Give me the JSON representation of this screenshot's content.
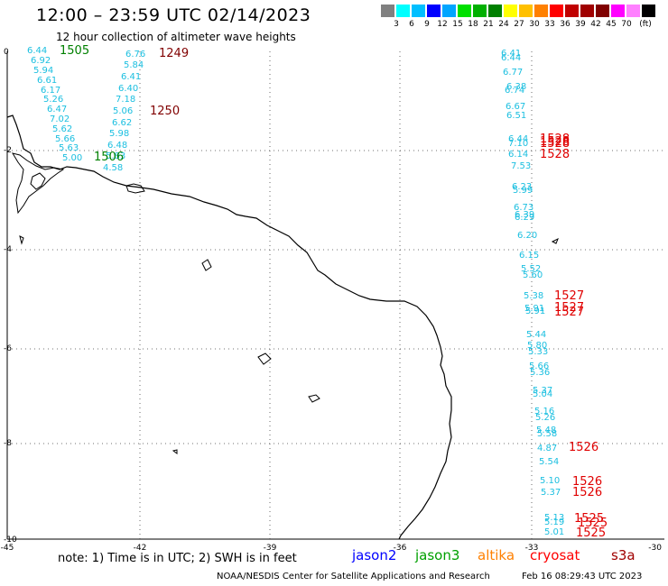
{
  "header": {
    "title": "12:00 – 23:59 UTC 02/14/2023",
    "subtitle": "12 hour collection of altimeter wave heights"
  },
  "legend": {
    "colors": [
      "#808080",
      "#00ffff",
      "#00bfff",
      "#0000ff",
      "#00a5ff",
      "#00e000",
      "#00b000",
      "#008000",
      "#ffff00",
      "#ffc000",
      "#ff8000",
      "#ff0000",
      "#c00000",
      "#a00000",
      "#800000",
      "#ff00ff",
      "#ff80ff",
      "#000000"
    ],
    "labels": [
      "3",
      "6",
      "9",
      "12",
      "15",
      "18",
      "21",
      "24",
      "27",
      "30",
      "33",
      "36",
      "39",
      "42",
      "45",
      "70"
    ],
    "unit": "(ft)"
  },
  "axes": {
    "x_labels": [
      "-45",
      "-42",
      "-39",
      "-36",
      "-33",
      "-30"
    ],
    "y_labels": [
      "0",
      "-2",
      "-4",
      "-6",
      "-8",
      "-10"
    ]
  },
  "track_west": {
    "heights": [
      "6.44",
      "6.92",
      "5.94",
      "6.61",
      "6.17",
      "5.26",
      "6.47",
      "7.02",
      "5.62",
      "5.66",
      "5.63",
      "5.00"
    ],
    "times": [
      "1505",
      "1506"
    ]
  },
  "track_mid": {
    "heights": [
      "6.76",
      "5.84",
      "6.41",
      "6.40",
      "7.18",
      "5.06",
      "6.62",
      "5.98",
      "6.48",
      "5.83",
      "4.58"
    ],
    "times": [
      "1249",
      "1250"
    ]
  },
  "track_east": {
    "heights": [
      "6.41",
      "6.44",
      "6.77",
      "6.38",
      "6.74",
      "6.67",
      "6.51",
      "6.44",
      "7.10",
      "6.14",
      "7.53",
      "6.23",
      "5.99",
      "6.73",
      "6.39",
      "6.29",
      "6.20",
      "6.15",
      "5.52",
      "5.60",
      "5.38",
      "5.91",
      "5.91",
      "5.44",
      "5.80",
      "5.33",
      "5.66",
      "5.36",
      "5.37",
      "5.04",
      "5.16",
      "5.26",
      "5.48",
      "5.58",
      "4.87",
      "5.54",
      "5.10",
      "5.37",
      "5.13",
      "5.19",
      "5.01"
    ],
    "times": [
      "1528",
      "1528",
      "1528",
      "1528",
      "1527",
      "1527",
      "1527",
      "1526",
      "1526",
      "1526",
      "1525",
      "1525",
      "1525"
    ]
  },
  "footer": {
    "note": "note: 1) Time is in UTC; 2) SWH is in feet",
    "satellites": [
      {
        "name": "jason2",
        "color": "#0000ff"
      },
      {
        "name": "jason3",
        "color": "#00a000"
      },
      {
        "name": "altika",
        "color": "#ff8000"
      },
      {
        "name": "cryosat",
        "color": "#ff0000"
      },
      {
        "name": "s3a",
        "color": "#a00000"
      }
    ],
    "credit": "NOAA/NESDIS Center for Satellite Applications and Research",
    "timestamp": "Feb 16 08:29:43 UTC 2023"
  }
}
